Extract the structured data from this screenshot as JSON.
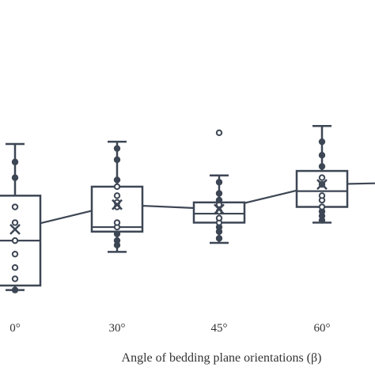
{
  "chart_data": {
    "type": "box",
    "xlabel": "Angle of bedding plane orientations (β)",
    "ylabel": "",
    "title": "",
    "categories": [
      "0°",
      "30°",
      "45°",
      "60°"
    ],
    "ylim": [
      -0.1,
      1.15
    ],
    "boxes": [
      {
        "category": "0°",
        "whisker_low": 0.0,
        "q1": 0.02,
        "median": 0.22,
        "q3": 0.42,
        "whisker_high": 0.65,
        "mean": 0.27,
        "points": [
          0.0,
          0.05,
          0.1,
          0.16,
          0.22,
          0.3,
          0.37,
          0.5,
          0.57
        ]
      },
      {
        "category": "30°",
        "whisker_low": 0.17,
        "q1": 0.26,
        "median": 0.28,
        "q3": 0.46,
        "whisker_high": 0.66,
        "mean": 0.38,
        "points": [
          0.2,
          0.22,
          0.25,
          0.28,
          0.3,
          0.37,
          0.39,
          0.42,
          0.46,
          0.49,
          0.58,
          0.63
        ]
      },
      {
        "category": "45°",
        "whisker_low": 0.21,
        "q1": 0.3,
        "median": 0.34,
        "q3": 0.39,
        "whisker_high": 0.51,
        "mean": 0.36,
        "points": [
          0.23,
          0.26,
          0.28,
          0.3,
          0.32,
          0.35,
          0.38,
          0.4,
          0.43,
          0.48,
          0.7
        ]
      },
      {
        "category": "60°",
        "whisker_low": 0.3,
        "q1": 0.37,
        "median": 0.44,
        "q3": 0.53,
        "whisker_high": 0.73,
        "mean": 0.47,
        "points": [
          0.31,
          0.33,
          0.35,
          0.37,
          0.4,
          0.42,
          0.47,
          0.5,
          0.55,
          0.6,
          0.66
        ]
      }
    ],
    "mean_line": {
      "extends_right_to": 0.475
    },
    "colors": {
      "stroke": "#3d4654",
      "fill": "#ffffff"
    },
    "grid": false,
    "legend": "none"
  }
}
